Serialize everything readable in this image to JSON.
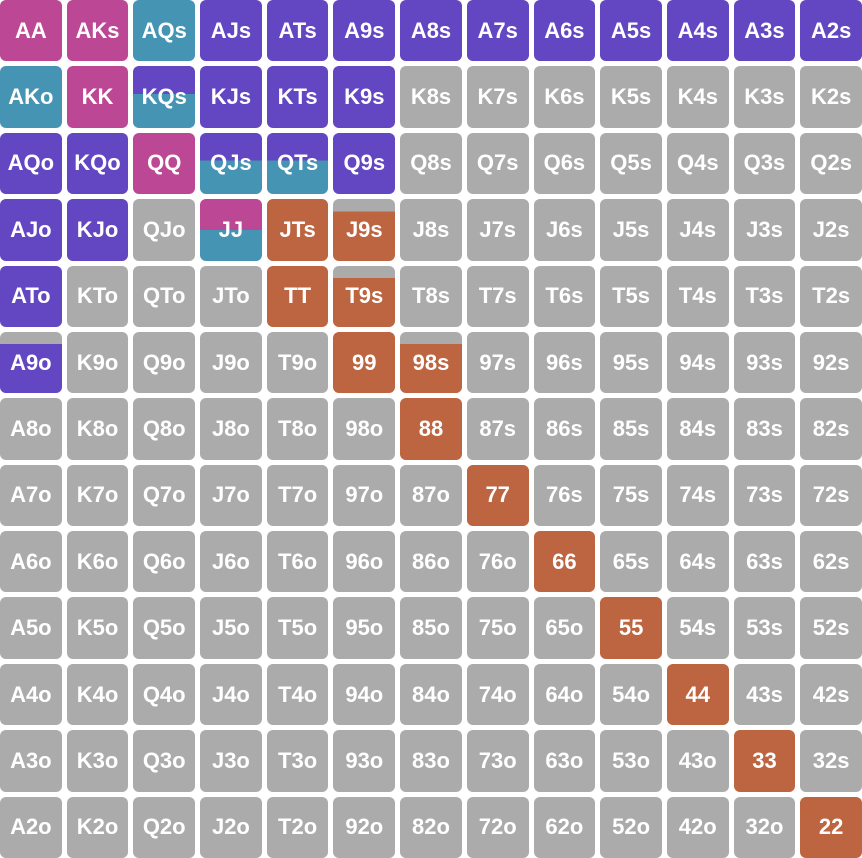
{
  "colors": {
    "purple": "#6346C2",
    "magenta": "#BB4795",
    "teal": "#4594B4",
    "orange": "#BD6440",
    "gray": "#ABABAB",
    "page_background": "#FFFFFF",
    "cell_text": "#FFFFFF"
  },
  "chart_data": {
    "type": "heatmap",
    "title": "",
    "description": "13x13 poker starting-hand range matrix; cell color encodes action category; split cells show mixed fills top-to-bottom",
    "row_ranks": [
      "A",
      "K",
      "Q",
      "J",
      "T",
      "9",
      "8",
      "7",
      "6",
      "5",
      "4",
      "3",
      "2"
    ],
    "col_ranks": [
      "A",
      "K",
      "Q",
      "J",
      "T",
      "9",
      "8",
      "7",
      "6",
      "5",
      "4",
      "3",
      "2"
    ],
    "legend": "none visible",
    "rows": [
      [
        {
          "label": "AA",
          "fill": "magenta"
        },
        {
          "label": "AKs",
          "fill": "magenta"
        },
        {
          "label": "AQs",
          "fill": "teal"
        },
        {
          "label": "AJs",
          "fill": "purple"
        },
        {
          "label": "ATs",
          "fill": "purple"
        },
        {
          "label": "A9s",
          "fill": "purple"
        },
        {
          "label": "A8s",
          "fill": "purple"
        },
        {
          "label": "A7s",
          "fill": "purple"
        },
        {
          "label": "A6s",
          "fill": "purple"
        },
        {
          "label": "A5s",
          "fill": "purple"
        },
        {
          "label": "A4s",
          "fill": "purple"
        },
        {
          "label": "A3s",
          "fill": "purple"
        },
        {
          "label": "A2s",
          "fill": "purple"
        }
      ],
      [
        {
          "label": "AKo",
          "fill": "teal"
        },
        {
          "label": "KK",
          "fill": "magenta"
        },
        {
          "label": "KQs",
          "fill": [
            [
              "purple",
              45
            ],
            [
              "teal",
              55
            ]
          ]
        },
        {
          "label": "KJs",
          "fill": "purple"
        },
        {
          "label": "KTs",
          "fill": "purple"
        },
        {
          "label": "K9s",
          "fill": "purple"
        },
        {
          "label": "K8s",
          "fill": "gray"
        },
        {
          "label": "K7s",
          "fill": "gray"
        },
        {
          "label": "K6s",
          "fill": "gray"
        },
        {
          "label": "K5s",
          "fill": "gray"
        },
        {
          "label": "K4s",
          "fill": "gray"
        },
        {
          "label": "K3s",
          "fill": "gray"
        },
        {
          "label": "K2s",
          "fill": "gray"
        }
      ],
      [
        {
          "label": "AQo",
          "fill": "purple"
        },
        {
          "label": "KQo",
          "fill": "purple"
        },
        {
          "label": "QQ",
          "fill": "magenta"
        },
        {
          "label": "QJs",
          "fill": [
            [
              "purple",
              45
            ],
            [
              "teal",
              55
            ]
          ]
        },
        {
          "label": "QTs",
          "fill": [
            [
              "purple",
              45
            ],
            [
              "teal",
              55
            ]
          ]
        },
        {
          "label": "Q9s",
          "fill": "purple"
        },
        {
          "label": "Q8s",
          "fill": "gray"
        },
        {
          "label": "Q7s",
          "fill": "gray"
        },
        {
          "label": "Q6s",
          "fill": "gray"
        },
        {
          "label": "Q5s",
          "fill": "gray"
        },
        {
          "label": "Q4s",
          "fill": "gray"
        },
        {
          "label": "Q3s",
          "fill": "gray"
        },
        {
          "label": "Q2s",
          "fill": "gray"
        }
      ],
      [
        {
          "label": "AJo",
          "fill": "purple"
        },
        {
          "label": "KJo",
          "fill": "purple"
        },
        {
          "label": "QJo",
          "fill": "gray"
        },
        {
          "label": "JJ",
          "fill": [
            [
              "magenta",
              50
            ],
            [
              "teal",
              50
            ]
          ]
        },
        {
          "label": "JTs",
          "fill": "orange"
        },
        {
          "label": "J9s",
          "fill": [
            [
              "gray",
              20
            ],
            [
              "orange",
              80
            ]
          ]
        },
        {
          "label": "J8s",
          "fill": "gray"
        },
        {
          "label": "J7s",
          "fill": "gray"
        },
        {
          "label": "J6s",
          "fill": "gray"
        },
        {
          "label": "J5s",
          "fill": "gray"
        },
        {
          "label": "J4s",
          "fill": "gray"
        },
        {
          "label": "J3s",
          "fill": "gray"
        },
        {
          "label": "J2s",
          "fill": "gray"
        }
      ],
      [
        {
          "label": "ATo",
          "fill": "purple"
        },
        {
          "label": "KTo",
          "fill": "gray"
        },
        {
          "label": "QTo",
          "fill": "gray"
        },
        {
          "label": "JTo",
          "fill": "gray"
        },
        {
          "label": "TT",
          "fill": "orange"
        },
        {
          "label": "T9s",
          "fill": [
            [
              "gray",
              20
            ],
            [
              "orange",
              80
            ]
          ]
        },
        {
          "label": "T8s",
          "fill": "gray"
        },
        {
          "label": "T7s",
          "fill": "gray"
        },
        {
          "label": "T6s",
          "fill": "gray"
        },
        {
          "label": "T5s",
          "fill": "gray"
        },
        {
          "label": "T4s",
          "fill": "gray"
        },
        {
          "label": "T3s",
          "fill": "gray"
        },
        {
          "label": "T2s",
          "fill": "gray"
        }
      ],
      [
        {
          "label": "A9o",
          "fill": [
            [
              "gray",
              20
            ],
            [
              "purple",
              80
            ]
          ]
        },
        {
          "label": "K9o",
          "fill": "gray"
        },
        {
          "label": "Q9o",
          "fill": "gray"
        },
        {
          "label": "J9o",
          "fill": "gray"
        },
        {
          "label": "T9o",
          "fill": "gray"
        },
        {
          "label": "99",
          "fill": "orange"
        },
        {
          "label": "98s",
          "fill": [
            [
              "gray",
              20
            ],
            [
              "orange",
              80
            ]
          ]
        },
        {
          "label": "97s",
          "fill": "gray"
        },
        {
          "label": "96s",
          "fill": "gray"
        },
        {
          "label": "95s",
          "fill": "gray"
        },
        {
          "label": "94s",
          "fill": "gray"
        },
        {
          "label": "93s",
          "fill": "gray"
        },
        {
          "label": "92s",
          "fill": "gray"
        }
      ],
      [
        {
          "label": "A8o",
          "fill": "gray"
        },
        {
          "label": "K8o",
          "fill": "gray"
        },
        {
          "label": "Q8o",
          "fill": "gray"
        },
        {
          "label": "J8o",
          "fill": "gray"
        },
        {
          "label": "T8o",
          "fill": "gray"
        },
        {
          "label": "98o",
          "fill": "gray"
        },
        {
          "label": "88",
          "fill": "orange"
        },
        {
          "label": "87s",
          "fill": "gray"
        },
        {
          "label": "86s",
          "fill": "gray"
        },
        {
          "label": "85s",
          "fill": "gray"
        },
        {
          "label": "84s",
          "fill": "gray"
        },
        {
          "label": "83s",
          "fill": "gray"
        },
        {
          "label": "82s",
          "fill": "gray"
        }
      ],
      [
        {
          "label": "A7o",
          "fill": "gray"
        },
        {
          "label": "K7o",
          "fill": "gray"
        },
        {
          "label": "Q7o",
          "fill": "gray"
        },
        {
          "label": "J7o",
          "fill": "gray"
        },
        {
          "label": "T7o",
          "fill": "gray"
        },
        {
          "label": "97o",
          "fill": "gray"
        },
        {
          "label": "87o",
          "fill": "gray"
        },
        {
          "label": "77",
          "fill": "orange"
        },
        {
          "label": "76s",
          "fill": "gray"
        },
        {
          "label": "75s",
          "fill": "gray"
        },
        {
          "label": "74s",
          "fill": "gray"
        },
        {
          "label": "73s",
          "fill": "gray"
        },
        {
          "label": "72s",
          "fill": "gray"
        }
      ],
      [
        {
          "label": "A6o",
          "fill": "gray"
        },
        {
          "label": "K6o",
          "fill": "gray"
        },
        {
          "label": "Q6o",
          "fill": "gray"
        },
        {
          "label": "J6o",
          "fill": "gray"
        },
        {
          "label": "T6o",
          "fill": "gray"
        },
        {
          "label": "96o",
          "fill": "gray"
        },
        {
          "label": "86o",
          "fill": "gray"
        },
        {
          "label": "76o",
          "fill": "gray"
        },
        {
          "label": "66",
          "fill": "orange"
        },
        {
          "label": "65s",
          "fill": "gray"
        },
        {
          "label": "64s",
          "fill": "gray"
        },
        {
          "label": "63s",
          "fill": "gray"
        },
        {
          "label": "62s",
          "fill": "gray"
        }
      ],
      [
        {
          "label": "A5o",
          "fill": "gray"
        },
        {
          "label": "K5o",
          "fill": "gray"
        },
        {
          "label": "Q5o",
          "fill": "gray"
        },
        {
          "label": "J5o",
          "fill": "gray"
        },
        {
          "label": "T5o",
          "fill": "gray"
        },
        {
          "label": "95o",
          "fill": "gray"
        },
        {
          "label": "85o",
          "fill": "gray"
        },
        {
          "label": "75o",
          "fill": "gray"
        },
        {
          "label": "65o",
          "fill": "gray"
        },
        {
          "label": "55",
          "fill": "orange"
        },
        {
          "label": "54s",
          "fill": "gray"
        },
        {
          "label": "53s",
          "fill": "gray"
        },
        {
          "label": "52s",
          "fill": "gray"
        }
      ],
      [
        {
          "label": "A4o",
          "fill": "gray"
        },
        {
          "label": "K4o",
          "fill": "gray"
        },
        {
          "label": "Q4o",
          "fill": "gray"
        },
        {
          "label": "J4o",
          "fill": "gray"
        },
        {
          "label": "T4o",
          "fill": "gray"
        },
        {
          "label": "94o",
          "fill": "gray"
        },
        {
          "label": "84o",
          "fill": "gray"
        },
        {
          "label": "74o",
          "fill": "gray"
        },
        {
          "label": "64o",
          "fill": "gray"
        },
        {
          "label": "54o",
          "fill": "gray"
        },
        {
          "label": "44",
          "fill": "orange"
        },
        {
          "label": "43s",
          "fill": "gray"
        },
        {
          "label": "42s",
          "fill": "gray"
        }
      ],
      [
        {
          "label": "A3o",
          "fill": "gray"
        },
        {
          "label": "K3o",
          "fill": "gray"
        },
        {
          "label": "Q3o",
          "fill": "gray"
        },
        {
          "label": "J3o",
          "fill": "gray"
        },
        {
          "label": "T3o",
          "fill": "gray"
        },
        {
          "label": "93o",
          "fill": "gray"
        },
        {
          "label": "83o",
          "fill": "gray"
        },
        {
          "label": "73o",
          "fill": "gray"
        },
        {
          "label": "63o",
          "fill": "gray"
        },
        {
          "label": "53o",
          "fill": "gray"
        },
        {
          "label": "43o",
          "fill": "gray"
        },
        {
          "label": "33",
          "fill": "orange"
        },
        {
          "label": "32s",
          "fill": "gray"
        }
      ],
      [
        {
          "label": "A2o",
          "fill": "gray"
        },
        {
          "label": "K2o",
          "fill": "gray"
        },
        {
          "label": "Q2o",
          "fill": "gray"
        },
        {
          "label": "J2o",
          "fill": "gray"
        },
        {
          "label": "T2o",
          "fill": "gray"
        },
        {
          "label": "92o",
          "fill": "gray"
        },
        {
          "label": "82o",
          "fill": "gray"
        },
        {
          "label": "72o",
          "fill": "gray"
        },
        {
          "label": "62o",
          "fill": "gray"
        },
        {
          "label": "52o",
          "fill": "gray"
        },
        {
          "label": "42o",
          "fill": "gray"
        },
        {
          "label": "32o",
          "fill": "gray"
        },
        {
          "label": "22",
          "fill": "orange"
        }
      ]
    ]
  }
}
